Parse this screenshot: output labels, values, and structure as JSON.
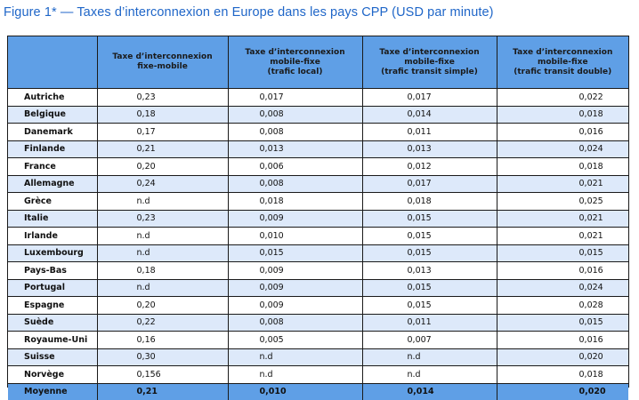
{
  "figure": {
    "title": "Figure 1* — Taxes d’interconnexion en Europe dans les pays CPP (USD par minute)"
  },
  "table": {
    "headers": [
      [],
      [
        "Taxe d’interconnexion",
        "fixe-mobile"
      ],
      [
        "Taxe d’interconnexion",
        "mobile-fixe",
        "(trafic local)"
      ],
      [
        "Taxe d’interconnexion",
        "mobile-fixe",
        "(trafic transit simple)"
      ],
      [
        "Taxe d’interconnexion",
        "mobile-fixe",
        "(trafic transit double)"
      ]
    ],
    "rows": [
      [
        "Autriche",
        "0,23",
        "0,017",
        "0,017",
        "0,022"
      ],
      [
        "Belgique",
        "0,18",
        "0,008",
        "0,014",
        "0,018"
      ],
      [
        "Danemark",
        "0,17",
        "0,008",
        "0,011",
        "0,016"
      ],
      [
        "Finlande",
        "0,21",
        "0,013",
        "0,013",
        "0,024"
      ],
      [
        "France",
        "0,20",
        "0,006",
        "0,012",
        "0,018"
      ],
      [
        "Allemagne",
        "0,24",
        "0,008",
        "0,017",
        "0,021"
      ],
      [
        "Grèce",
        "n.d",
        "0,018",
        "0,018",
        "0,025"
      ],
      [
        "Italie",
        "0,23",
        "0,009",
        "0,015",
        "0,021"
      ],
      [
        "Irlande",
        "n.d",
        "0,010",
        "0,015",
        "0,021"
      ],
      [
        "Luxembourg",
        "n.d",
        "0,015",
        "0,015",
        "0,015"
      ],
      [
        "Pays-Bas",
        "0,18",
        "0,009",
        "0,013",
        "0,016"
      ],
      [
        "Portugal",
        "n.d",
        "0,009",
        "0,015",
        "0,024"
      ],
      [
        "Espagne",
        "0,20",
        "0,009",
        "0,015",
        "0,028"
      ],
      [
        "Suède",
        "0,22",
        "0,008",
        "0,011",
        "0,015"
      ],
      [
        "Royaume-Uni",
        "0,16",
        "0,005",
        "0,007",
        "0,016"
      ],
      [
        "Suisse",
        "0,30",
        "n.d",
        "n.d",
        "0,020"
      ],
      [
        "Norvège",
        "0,156",
        "n.d",
        "n.d",
        "0,018"
      ]
    ],
    "average": [
      "Moyenne",
      "0,21",
      "0,010",
      "0,014",
      "0,020"
    ]
  },
  "colors": {
    "title": "#1f66c8",
    "header_bg": "#5f9fe6",
    "stripe_bg": "#dde9fa",
    "border": "#1a1a1a"
  }
}
